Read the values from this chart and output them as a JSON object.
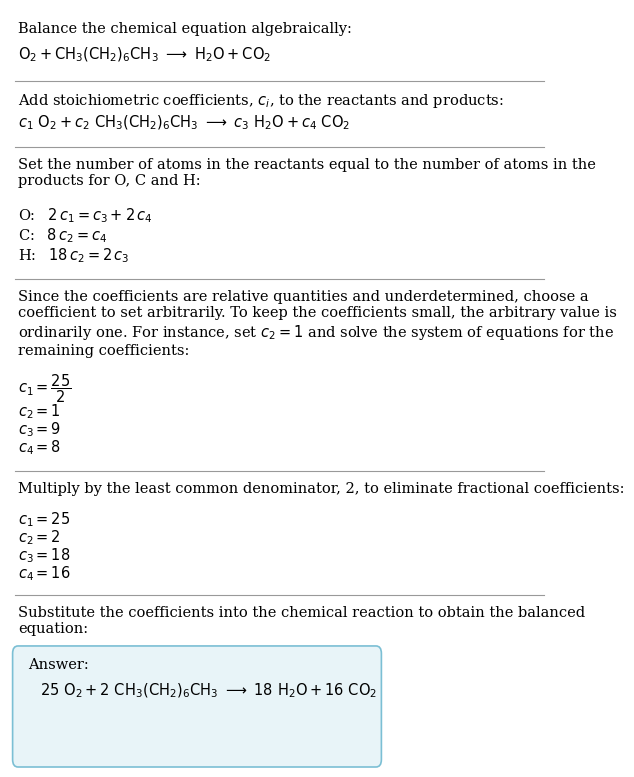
{
  "bg_color": "#ffffff",
  "text_color": "#000000",
  "section1_title": "Balance the chemical equation algebraically:",
  "section1_line1": "$\\mathrm{O_2 + CH_3(CH_2)_6CH_3 \\ \\longrightarrow \\ H_2O + CO_2}$",
  "section2_title": "Add stoichiometric coefficients, $c_i$, to the reactants and products:",
  "section2_line1": "$c_1 \\ \\mathrm{O_2} + c_2 \\ \\mathrm{CH_3(CH_2)_6CH_3} \\ \\longrightarrow \\ c_3 \\ \\mathrm{H_2O} + c_4 \\ \\mathrm{CO_2}$",
  "section3_title": "Set the number of atoms in the reactants equal to the number of atoms in the\nproducts for O, C and H:",
  "section3_O": "O: $\\;\\; 2 \\, c_1 = c_3 + 2 \\, c_4$",
  "section3_C": "C: $\\;\\; 8 \\, c_2 = c_4$",
  "section3_H": "H: $\\; 18 \\, c_2 = 2 \\, c_3$",
  "section4_title": "Since the coefficients are relative quantities and underdetermined, choose a\ncoefficient to set arbitrarily. To keep the coefficients small, the arbitrary value is\nordinarily one. For instance, set $c_2 = 1$ and solve the system of equations for the\nremaining coefficients:",
  "section4_c1": "$c_1 = \\dfrac{25}{2}$",
  "section4_c2": "$c_2 = 1$",
  "section4_c3": "$c_3 = 9$",
  "section4_c4": "$c_4 = 8$",
  "section5_title": "Multiply by the least common denominator, 2, to eliminate fractional coefficients:",
  "section5_c1": "$c_1 = 25$",
  "section5_c2": "$c_2 = 2$",
  "section5_c3": "$c_3 = 18$",
  "section5_c4": "$c_4 = 16$",
  "section6_title": "Substitute the coefficients into the chemical reaction to obtain the balanced\nequation:",
  "answer_label": "Answer:",
  "answer_eq": "$25 \\ \\mathrm{O_2} + 2 \\ \\mathrm{CH_3(CH_2)_6CH_3} \\ \\longrightarrow \\ 18 \\ \\mathrm{H_2O} + 16 \\ \\mathrm{CO_2}$",
  "answer_box_color": "#e8f4f8",
  "answer_box_border": "#7bbfd4"
}
